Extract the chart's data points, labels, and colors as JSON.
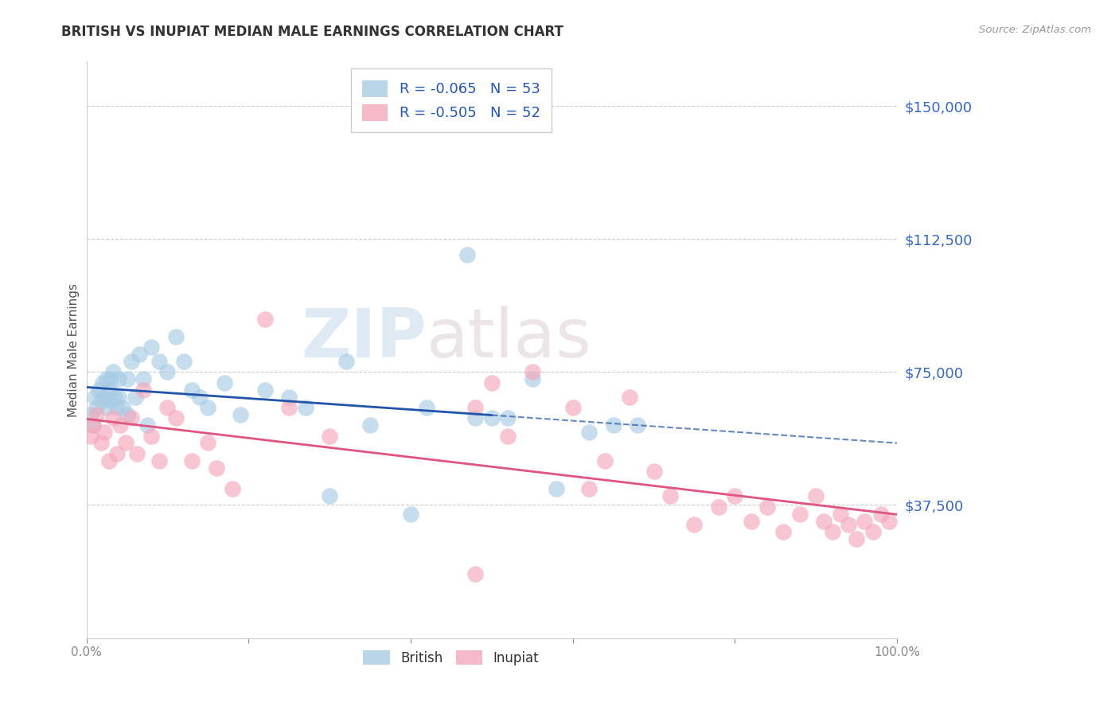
{
  "title": "BRITISH VS INUPIAT MEDIAN MALE EARNINGS CORRELATION CHART",
  "source": "Source: ZipAtlas.com",
  "ylabel": "Median Male Earnings",
  "ytick_labels": [
    "$37,500",
    "$75,000",
    "$112,500",
    "$150,000"
  ],
  "ytick_values": [
    37500,
    75000,
    112500,
    150000
  ],
  "ymin": 0,
  "ymax": 162500,
  "xmin": 0.0,
  "xmax": 1.0,
  "british_color": "#a8cce4",
  "inupiat_color": "#f4a8bb",
  "british_line_color": "#2255aa",
  "inupiat_line_color": "#e05580",
  "background_color": "#ffffff",
  "watermark_zip": "ZIP",
  "watermark_atlas": "atlas",
  "british_x": [
    0.005,
    0.008,
    0.01,
    0.012,
    0.015,
    0.018,
    0.02,
    0.022,
    0.025,
    0.025,
    0.028,
    0.03,
    0.03,
    0.033,
    0.035,
    0.038,
    0.04,
    0.04,
    0.045,
    0.05,
    0.05,
    0.055,
    0.06,
    0.065,
    0.07,
    0.075,
    0.08,
    0.09,
    0.1,
    0.11,
    0.12,
    0.13,
    0.14,
    0.15,
    0.17,
    0.19,
    0.22,
    0.25,
    0.27,
    0.3,
    0.32,
    0.35,
    0.4,
    0.47,
    0.5,
    0.52,
    0.55,
    0.58,
    0.62,
    0.65,
    0.68,
    0.48,
    0.42
  ],
  "british_y": [
    63000,
    60000,
    68000,
    65000,
    70000,
    67000,
    72000,
    68000,
    73000,
    65000,
    70000,
    73000,
    67000,
    75000,
    68000,
    65000,
    73000,
    68000,
    65000,
    73000,
    63000,
    78000,
    68000,
    80000,
    73000,
    60000,
    82000,
    78000,
    75000,
    85000,
    78000,
    70000,
    68000,
    65000,
    72000,
    63000,
    70000,
    68000,
    65000,
    40000,
    78000,
    60000,
    35000,
    108000,
    62000,
    62000,
    73000,
    42000,
    58000,
    60000,
    60000,
    62000,
    65000
  ],
  "inupiat_x": [
    0.005,
    0.008,
    0.012,
    0.018,
    0.022,
    0.028,
    0.033,
    0.038,
    0.042,
    0.048,
    0.055,
    0.062,
    0.07,
    0.08,
    0.09,
    0.1,
    0.11,
    0.13,
    0.15,
    0.16,
    0.18,
    0.22,
    0.25,
    0.3,
    0.48,
    0.5,
    0.52,
    0.55,
    0.6,
    0.62,
    0.64,
    0.67,
    0.7,
    0.72,
    0.75,
    0.78,
    0.8,
    0.82,
    0.84,
    0.86,
    0.88,
    0.9,
    0.91,
    0.92,
    0.93,
    0.94,
    0.95,
    0.96,
    0.97,
    0.98,
    0.99,
    0.48
  ],
  "inupiat_y": [
    57000,
    60000,
    63000,
    55000,
    58000,
    50000,
    62000,
    52000,
    60000,
    55000,
    62000,
    52000,
    70000,
    57000,
    50000,
    65000,
    62000,
    50000,
    55000,
    48000,
    42000,
    90000,
    65000,
    57000,
    65000,
    72000,
    57000,
    75000,
    65000,
    42000,
    50000,
    68000,
    47000,
    40000,
    32000,
    37000,
    40000,
    33000,
    37000,
    30000,
    35000,
    40000,
    33000,
    30000,
    35000,
    32000,
    28000,
    33000,
    30000,
    35000,
    33000,
    18000
  ]
}
